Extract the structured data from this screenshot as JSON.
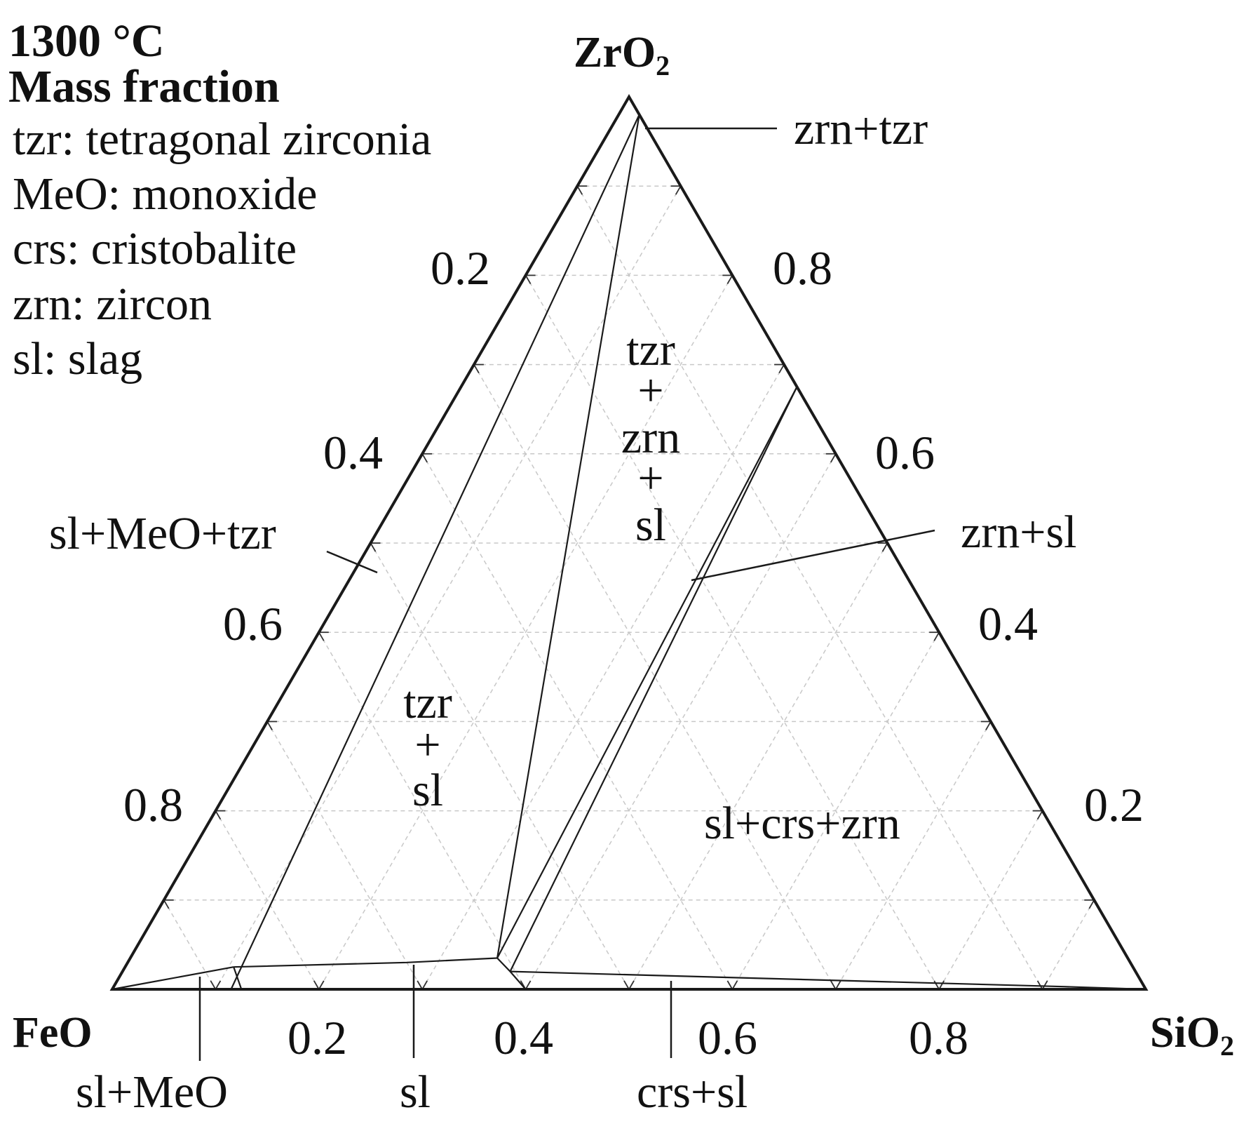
{
  "legend": {
    "temperature": "1300 °C",
    "basis": "Mass fraction",
    "entries": [
      "tzr: tetragonal zirconia",
      "MeO: monoxide",
      "crs: cristobalite",
      "zrn: zircon",
      "sl: slag"
    ]
  },
  "vertices": {
    "top": {
      "main": "ZrO",
      "sub": "2"
    },
    "left": {
      "main": "FeO",
      "sub": ""
    },
    "right": {
      "main": "SiO",
      "sub": "2"
    }
  },
  "tick_labels": {
    "bottom": [
      "0.2",
      "0.4",
      "0.6",
      "0.8"
    ],
    "left": [
      "0.2",
      "0.4",
      "0.6",
      "0.8"
    ],
    "right": [
      "0.8",
      "0.6",
      "0.4",
      "0.2"
    ]
  },
  "regions": {
    "zrn_tzr": "zrn+tzr",
    "tzr_zrn_sl": [
      "tzr",
      "+",
      "zrn",
      "+",
      "sl"
    ],
    "zrn_sl": "zrn+sl",
    "sl_meo_tzr": "sl+MeO+tzr",
    "tzr_sl": [
      "tzr",
      "+",
      "sl"
    ],
    "sl_crs_zrn": "sl+crs+zrn",
    "sl_meo": "sl+MeO",
    "sl": "sl",
    "crs_sl": "crs+sl"
  },
  "chart_data": {
    "type": "ternary",
    "components": {
      "top": "ZrO2",
      "left": "FeO",
      "right": "SiO2"
    },
    "temperature_C": 1300,
    "basis": "Mass fraction",
    "grid_step": 0.1,
    "boundaries": [
      {
        "region": "sl+MeO+tzr / tzr+sl",
        "points": [
          [
            0.0,
            0.885,
            0.115
          ],
          [
            0.98,
            0.0,
            0.02
          ]
        ]
      },
      {
        "region": "sl+MeO / sl+MeO+tzr",
        "points": [
          [
            0.0,
            1.0,
            0.0
          ],
          [
            0.025,
            0.87,
            0.105
          ]
        ]
      },
      {
        "region": "sl+MeO / sl",
        "points": [
          [
            0.025,
            0.87,
            0.105
          ],
          [
            0.0,
            0.875,
            0.125
          ]
        ]
      },
      {
        "region": "tzr+sl / sl",
        "points": [
          [
            0.025,
            0.87,
            0.105
          ],
          [
            0.03,
            0.7,
            0.27
          ],
          [
            0.035,
            0.61,
            0.355
          ]
        ]
      },
      {
        "region": "tzr+sl / tzr+zrn+sl",
        "points": [
          [
            0.035,
            0.61,
            0.355
          ],
          [
            0.98,
            0.0,
            0.02
          ]
        ]
      },
      {
        "region": "tzr+zrn+sl / zrn+sl",
        "points": [
          [
            0.035,
            0.61,
            0.355
          ],
          [
            0.675,
            0.0,
            0.325
          ]
        ]
      },
      {
        "region": "zrn+sl / sl+crs+zrn",
        "points": [
          [
            0.02,
            0.605,
            0.375
          ],
          [
            0.675,
            0.0,
            0.325
          ]
        ]
      },
      {
        "region": "sl / crs+sl",
        "points": [
          [
            0.035,
            0.61,
            0.355
          ],
          [
            0.02,
            0.605,
            0.375
          ],
          [
            0.0,
            0.6,
            0.4
          ]
        ]
      },
      {
        "region": "sl+crs+zrn / crs+sl",
        "points": [
          [
            0.02,
            0.605,
            0.375
          ],
          [
            0.003,
            0.078,
            0.919
          ],
          [
            0.0,
            0.0,
            1.0
          ]
        ]
      },
      {
        "region": "zrn+tzr",
        "points": [
          [
            0.98,
            0.0,
            0.02
          ],
          [
            0.97,
            0.0,
            0.03
          ]
        ]
      }
    ]
  }
}
